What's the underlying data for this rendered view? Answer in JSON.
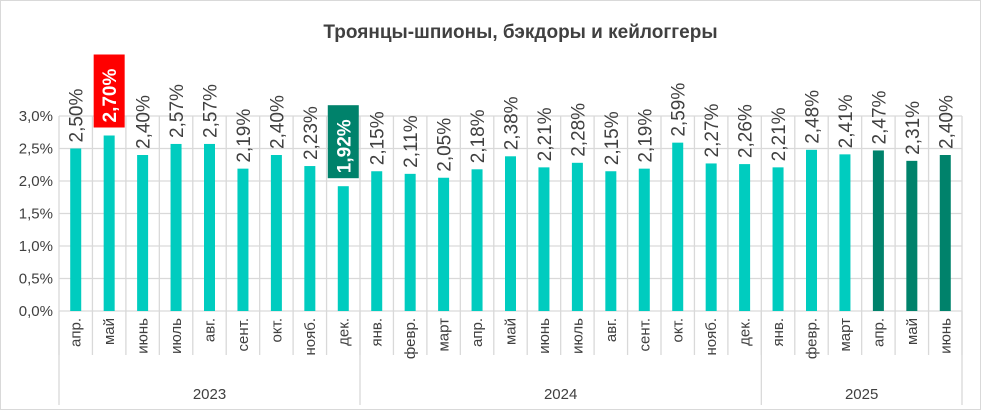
{
  "chart_data": {
    "type": "bar",
    "title": "Троянцы-шпионы, бэкдоры и кейлоггеры",
    "xlabel": "",
    "ylabel": "",
    "ylim": [
      0,
      3.0
    ],
    "yticks": [
      "0,0%",
      "0,5%",
      "1,0%",
      "1,5%",
      "2,0%",
      "2,5%",
      "3,0%"
    ],
    "grid": true,
    "years": [
      {
        "label": "2023",
        "count": 9
      },
      {
        "label": "2024",
        "count": 12
      },
      {
        "label": "2025",
        "count": 6
      }
    ],
    "categories": [
      "апр.",
      "май",
      "июнь",
      "июль",
      "авг.",
      "сент.",
      "окт.",
      "нояб.",
      "дек.",
      "янв.",
      "февр.",
      "март",
      "апр.",
      "май",
      "июнь",
      "июль",
      "авг.",
      "сент.",
      "окт.",
      "нояб.",
      "дек.",
      "янв.",
      "февр.",
      "март",
      "апр.",
      "май",
      "июнь"
    ],
    "values": [
      2.5,
      2.7,
      2.4,
      2.57,
      2.57,
      2.19,
      2.4,
      2.23,
      1.92,
      2.15,
      2.11,
      2.05,
      2.18,
      2.38,
      2.21,
      2.28,
      2.15,
      2.19,
      2.59,
      2.27,
      2.26,
      2.21,
      2.48,
      2.41,
      2.47,
      2.31,
      2.4
    ],
    "labels": [
      "2,50%",
      "2,70%",
      "2,40%",
      "2,57%",
      "2,57%",
      "2,19%",
      "2,40%",
      "2,23%",
      "1,92%",
      "2,15%",
      "2,11%",
      "2,05%",
      "2,18%",
      "2,38%",
      "2,21%",
      "2,28%",
      "2,15%",
      "2,19%",
      "2,59%",
      "2,27%",
      "2,26%",
      "2,21%",
      "2,48%",
      "2,41%",
      "2,47%",
      "2,31%",
      "2,40%"
    ],
    "highlight_max_index": 1,
    "highlight_min_index": 8,
    "dark_indices": [
      24,
      25,
      26
    ],
    "colors": {
      "bar": "#00CCBF",
      "dark": "#00826B",
      "max": "#FF0000",
      "min": "#00826B"
    }
  }
}
